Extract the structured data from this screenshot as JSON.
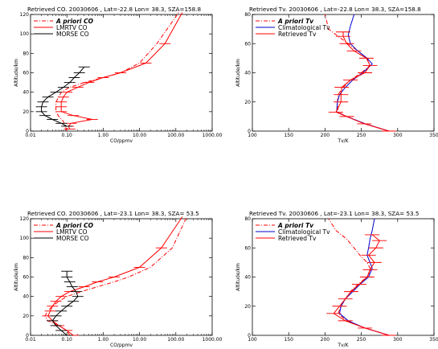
{
  "chart_data": [
    {
      "type": "line",
      "title": "Retrieved CO. 20030606 , Lat=-22.8 Lon= 38.3, SZA=158.8",
      "xlabel": "CO/ppmv",
      "ylabel": "Altitude/km",
      "xscale": "log",
      "xlim": [
        0.01,
        1000
      ],
      "ylim": [
        0,
        120
      ],
      "xticks": [
        "0.01",
        "0.10",
        "1.00",
        "10.00",
        "100.00",
        "1000.00"
      ],
      "yticks": [
        "0",
        "20",
        "40",
        "60",
        "80",
        "100",
        "120"
      ],
      "legend": [
        "A priori CO",
        "LMRTV CO",
        "MORSE CO"
      ],
      "legend_position": "top-left",
      "series": [
        {
          "name": "A priori CO",
          "style": "dash-dot",
          "color": "#ff0000",
          "points": [
            [
              0.1,
              0
            ],
            [
              0.09,
              5
            ],
            [
              0.08,
              10
            ],
            [
              0.06,
              15
            ],
            [
              0.05,
              20
            ],
            [
              0.05,
              25
            ],
            [
              0.05,
              30
            ],
            [
              0.06,
              35
            ],
            [
              0.07,
              40
            ],
            [
              0.12,
              45
            ],
            [
              0.3,
              50
            ],
            [
              1.0,
              55
            ],
            [
              3.0,
              60
            ],
            [
              10.0,
              70
            ],
            [
              30.0,
              90
            ],
            [
              120.0,
              122
            ]
          ]
        },
        {
          "name": "LMRTV CO",
          "style": "solid",
          "color": "#ff0000",
          "points": [
            [
              0.12,
              2
            ],
            [
              0.11,
              5
            ],
            [
              0.13,
              8
            ],
            [
              0.5,
              12
            ],
            [
              0.15,
              16
            ],
            [
              0.07,
              20
            ],
            [
              0.07,
              25
            ],
            [
              0.07,
              30
            ],
            [
              0.08,
              35
            ],
            [
              0.1,
              40
            ],
            [
              0.2,
              45
            ],
            [
              0.4,
              50
            ],
            [
              1.0,
              55
            ],
            [
              3.0,
              60
            ],
            [
              15.0,
              70
            ],
            [
              50.0,
              90
            ],
            [
              150.0,
              122
            ]
          ]
        },
        {
          "name": "MORSE CO",
          "style": "solid",
          "color": "#000000",
          "points": [
            [
              0.1,
              5
            ],
            [
              0.07,
              8
            ],
            [
              0.04,
              12
            ],
            [
              0.025,
              16
            ],
            [
              0.02,
              20
            ],
            [
              0.02,
              25
            ],
            [
              0.022,
              30
            ],
            [
              0.03,
              35
            ],
            [
              0.05,
              40
            ],
            [
              0.08,
              45
            ],
            [
              0.12,
              50
            ],
            [
              0.16,
              55
            ],
            [
              0.22,
              60
            ],
            [
              0.3,
              66
            ]
          ]
        }
      ]
    },
    {
      "type": "line",
      "title": "Retrieved Tv. 20030606 , Lat=-22.8 Lon= 38.3, SZA=158.8",
      "xlabel": "Tv/K",
      "ylabel": "Altitude/km",
      "xlim": [
        100,
        350
      ],
      "ylim": [
        0,
        80
      ],
      "xticks": [
        "100",
        "150",
        "200",
        "250",
        "300",
        "350"
      ],
      "yticks": [
        "0",
        "20",
        "40",
        "60",
        "80"
      ],
      "legend": [
        "A priori Tv",
        "Climatological Tv",
        "Retrieved Tv"
      ],
      "legend_position": "top-left",
      "series": [
        {
          "name": "A priori Tv",
          "style": "dash-dot",
          "color": "#ff0000",
          "points": [
            [
              288,
              0
            ],
            [
              255,
              5
            ],
            [
              230,
              10
            ],
            [
              218,
              13
            ],
            [
              217,
              20
            ],
            [
              218,
              25
            ],
            [
              225,
              30
            ],
            [
              235,
              35
            ],
            [
              250,
              40
            ],
            [
              262,
              45
            ],
            [
              258,
              50
            ],
            [
              245,
              55
            ],
            [
              232,
              60
            ],
            [
              218,
              65
            ],
            [
              205,
              70
            ],
            [
              200,
              80
            ]
          ]
        },
        {
          "name": "Climatological Tv",
          "style": "solid",
          "color": "#0000cc",
          "points": [
            [
              288,
              0
            ],
            [
              255,
              5
            ],
            [
              230,
              10
            ],
            [
              216,
              13
            ],
            [
              217,
              20
            ],
            [
              220,
              25
            ],
            [
              228,
              30
            ],
            [
              238,
              35
            ],
            [
              252,
              40
            ],
            [
              265,
              46
            ],
            [
              258,
              50
            ],
            [
              245,
              55
            ],
            [
              235,
              60
            ],
            [
              232,
              66
            ],
            [
              235,
              72
            ],
            [
              240,
              80
            ]
          ]
        },
        {
          "name": "Retrieved Tv",
          "style": "solid",
          "color": "#ff0000",
          "points": [
            [
              288,
              0
            ],
            [
              254,
              5
            ],
            [
              230,
              10
            ],
            [
              215,
              13
            ],
            [
              222,
              20
            ],
            [
              222,
              25
            ],
            [
              223,
              30
            ],
            [
              235,
              35
            ],
            [
              255,
              40
            ],
            [
              262,
              45
            ],
            [
              257,
              50
            ],
            [
              240,
              55
            ],
            [
              230,
              60
            ],
            [
              225,
              65
            ],
            [
              225,
              68
            ]
          ]
        }
      ]
    },
    {
      "type": "line",
      "title": "Retrieved CO. 20030606 , Lat=-23.1 Lon= 38.3, SZA= 53.5",
      "xlabel": "CO/ppmv",
      "ylabel": "Altitude/km",
      "xscale": "log",
      "xlim": [
        0.01,
        1000
      ],
      "ylim": [
        0,
        120
      ],
      "xticks": [
        "0.01",
        "0.10",
        "1.00",
        "10.00",
        "100.00",
        "1000.00"
      ],
      "yticks": [
        "0",
        "20",
        "40",
        "60",
        "80",
        "100",
        "120"
      ],
      "legend": [
        "A priori CO",
        "LMRTV CO",
        "MORSE CO"
      ],
      "legend_position": "top-left",
      "series": [
        {
          "name": "A priori CO",
          "style": "dash-dot",
          "color": "#ff0000",
          "points": [
            [
              0.12,
              0
            ],
            [
              0.1,
              5
            ],
            [
              0.06,
              10
            ],
            [
              0.03,
              15
            ],
            [
              0.025,
              20
            ],
            [
              0.03,
              25
            ],
            [
              0.04,
              30
            ],
            [
              0.06,
              35
            ],
            [
              0.1,
              40
            ],
            [
              0.25,
              45
            ],
            [
              0.7,
              50
            ],
            [
              2.0,
              55
            ],
            [
              5.0,
              60
            ],
            [
              20.0,
              70
            ],
            [
              80.0,
              90
            ],
            [
              200.0,
              122
            ]
          ]
        },
        {
          "name": "LMRTV CO",
          "style": "solid",
          "color": "#ff0000",
          "points": [
            [
              0.15,
              0
            ],
            [
              0.1,
              5
            ],
            [
              0.06,
              10
            ],
            [
              0.04,
              15
            ],
            [
              0.03,
              20
            ],
            [
              0.035,
              25
            ],
            [
              0.04,
              30
            ],
            [
              0.05,
              35
            ],
            [
              0.07,
              40
            ],
            [
              0.12,
              45
            ],
            [
              0.3,
              50
            ],
            [
              0.7,
              55
            ],
            [
              2.0,
              60
            ],
            [
              10.0,
              70
            ],
            [
              40.0,
              90
            ],
            [
              150.0,
              122
            ]
          ]
        },
        {
          "name": "MORSE CO",
          "style": "solid",
          "color": "#000000",
          "points": [
            [
              0.1,
              0
            ],
            [
              0.07,
              5
            ],
            [
              0.05,
              10
            ],
            [
              0.04,
              15
            ],
            [
              0.05,
              20
            ],
            [
              0.07,
              25
            ],
            [
              0.1,
              30
            ],
            [
              0.15,
              35
            ],
            [
              0.2,
              40
            ],
            [
              0.18,
              45
            ],
            [
              0.14,
              50
            ],
            [
              0.12,
              55
            ],
            [
              0.1,
              60
            ],
            [
              0.1,
              66
            ]
          ]
        }
      ]
    },
    {
      "type": "line",
      "title": "Retrieved Tv. 20030606 , Lat=-23.1 Lon= 38.3, SZA= 53.5",
      "xlabel": "Tv/K",
      "ylabel": "Altitude/km",
      "xlim": [
        100,
        350
      ],
      "ylim": [
        0,
        80
      ],
      "xticks": [
        "100",
        "150",
        "200",
        "250",
        "300",
        "350"
      ],
      "yticks": [
        "0",
        "20",
        "40",
        "60",
        "80"
      ],
      "legend": [
        "A priori Tv",
        "Climatological Tv",
        "Retrieved Tv"
      ],
      "legend_position": "top-left",
      "series": [
        {
          "name": "A priori Tv",
          "style": "dash-dot",
          "color": "#ff0000",
          "points": [
            [
              288,
              0
            ],
            [
              255,
              5
            ],
            [
              230,
              10
            ],
            [
              218,
              15
            ],
            [
              222,
              20
            ],
            [
              228,
              25
            ],
            [
              235,
              30
            ],
            [
              245,
              35
            ],
            [
              258,
              40
            ],
            [
              263,
              45
            ],
            [
              258,
              50
            ],
            [
              248,
              55
            ],
            [
              240,
              60
            ],
            [
              230,
              66
            ],
            [
              215,
              72
            ],
            [
              205,
              80
            ]
          ]
        },
        {
          "name": "Climatological Tv",
          "style": "solid",
          "color": "#0000cc",
          "points": [
            [
              288,
              0
            ],
            [
              255,
              5
            ],
            [
              232,
              10
            ],
            [
              220,
              15
            ],
            [
              222,
              20
            ],
            [
              228,
              25
            ],
            [
              238,
              30
            ],
            [
              248,
              35
            ],
            [
              260,
              40
            ],
            [
              265,
              46
            ],
            [
              262,
              50
            ],
            [
              258,
              55
            ],
            [
              260,
              60
            ],
            [
              262,
              66
            ],
            [
              265,
              72
            ],
            [
              268,
              80
            ]
          ]
        },
        {
          "name": "Retrieved Tv",
          "style": "solid",
          "color": "#ff0000",
          "points": [
            [
              288,
              0
            ],
            [
              255,
              5
            ],
            [
              228,
              10
            ],
            [
              212,
              15
            ],
            [
              220,
              20
            ],
            [
              228,
              25
            ],
            [
              236,
              30
            ],
            [
              247,
              35
            ],
            [
              258,
              40
            ],
            [
              262,
              45
            ],
            [
              268,
              50
            ],
            [
              260,
              55
            ],
            [
              270,
              60
            ],
            [
              275,
              65
            ],
            [
              265,
              69
            ]
          ]
        }
      ]
    }
  ]
}
